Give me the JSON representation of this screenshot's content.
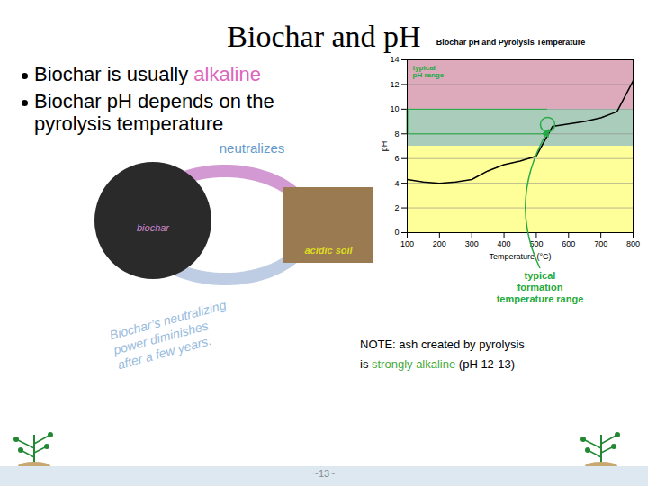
{
  "chart_data": {
    "type": "line",
    "title": "Biochar and pH",
    "subtitle": "Biochar pH and Pyrolysis Temperature",
    "x_label": "Temperature (°C)",
    "y_label": "pH",
    "x": [
      100,
      150,
      200,
      250,
      300,
      350,
      400,
      450,
      500,
      550,
      600,
      650,
      700,
      750,
      800
    ],
    "values": [
      4.3,
      4.1,
      4.0,
      4.1,
      4.3,
      5.0,
      5.5,
      5.8,
      6.2,
      8.6,
      8.8,
      9.0,
      9.3,
      9.8,
      12.3
    ],
    "color": "#000000",
    "xlim": [
      100,
      800
    ],
    "xticks": [
      100,
      200,
      300,
      400,
      500,
      600,
      700,
      800
    ],
    "ylim": [
      0,
      14
    ],
    "yticks": [
      0,
      2,
      4,
      6,
      8,
      10,
      12,
      14
    ],
    "grid": true,
    "bands": [
      {
        "from": 0,
        "to": 7,
        "color": "#ffff99"
      },
      {
        "from": 7,
        "to": 10,
        "color": "#aaccbb"
      },
      {
        "from": 10,
        "to": 14,
        "color": "#ddaabb"
      }
    ],
    "ph_range": [
      8,
      10
    ],
    "highlight": {
      "x": 535,
      "y": 8.75
    },
    "annotations": {
      "bullet1": [
        {
          "text": "Biochar is usually "
        },
        {
          "text": "alkaline",
          "color": "#dd66bb"
        }
      ],
      "bullet2": [
        {
          "text": "Biochar pH depends on the\npyrolysis temperature"
        }
      ],
      "typical_ph": {
        "text": "typical\npH range",
        "color": "#22aa44"
      },
      "typical_formation": {
        "text": "typical\nformation\ntemperature range",
        "color": "#22aa44"
      },
      "neutralizes": {
        "text": "neutralizes",
        "color": "#6699cc"
      },
      "biochar": {
        "text": "biochar",
        "color": "#cc88cc"
      },
      "acidic_soil": {
        "text": "acidic soil",
        "color": "#dddd22"
      },
      "italic_note": {
        "text": "Biochar’s neutralizing\npower diminishes\nafter a few years.",
        "color": "#99bbdd"
      },
      "note": [
        {
          "text": "NOTE: ash created by pyrolysis\nis "
        },
        {
          "text": "strongly alkaline",
          "color": "#44aa44"
        },
        {
          "text": " (pH 12-13)"
        }
      ],
      "page_number": {
        "text": "~13~",
        "color": "#888888"
      }
    }
  }
}
